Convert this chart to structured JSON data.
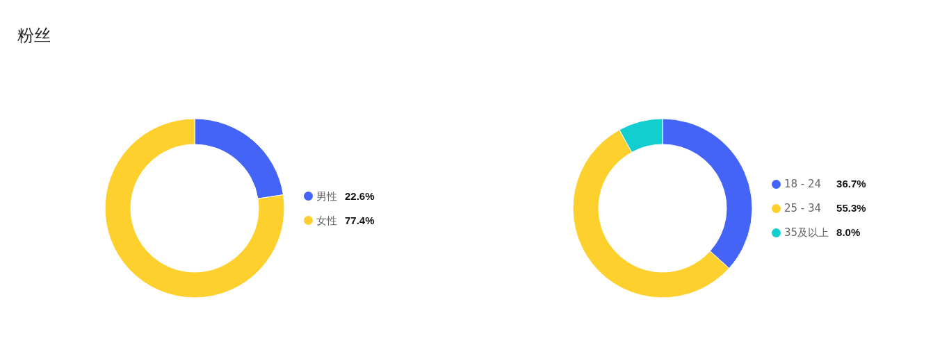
{
  "chart_data": [
    {
      "type": "donut",
      "title": "粉丝",
      "categories": [
        "男性",
        "女性"
      ],
      "values": [
        22.6,
        77.4
      ],
      "colors": [
        "#4364f7",
        "#fed02e"
      ],
      "value_labels": [
        "22.6%",
        "77.4%"
      ],
      "legend": "right"
    },
    {
      "type": "donut",
      "categories": [
        "18 - 24",
        "25 - 34",
        "35及以上"
      ],
      "values": [
        36.7,
        55.3,
        8.0
      ],
      "colors": [
        "#4364f7",
        "#fed02e",
        "#13cece"
      ],
      "value_labels": [
        "36.7%",
        "55.3%",
        "8.0%"
      ],
      "legend": "right"
    }
  ]
}
